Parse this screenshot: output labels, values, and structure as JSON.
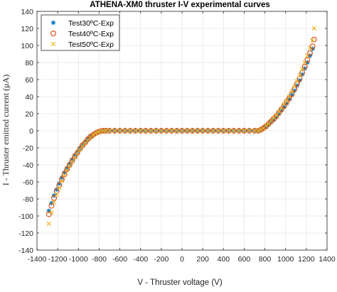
{
  "chart_data": {
    "type": "scatter",
    "title": "ATHENA-XM0 thruster I-V experimental curves",
    "xlabel": "V - Thruster voltage (V)",
    "ylabel": "I - Thruster emitted current (μA)",
    "xlim": [
      -1400,
      1400
    ],
    "ylim": [
      -140,
      140
    ],
    "xticks": [
      -1400,
      -1200,
      -1000,
      -800,
      -600,
      -400,
      -200,
      0,
      200,
      400,
      600,
      800,
      1000,
      1200,
      1400
    ],
    "yticks": [
      -140,
      -120,
      -100,
      -80,
      -60,
      -40,
      -20,
      0,
      20,
      40,
      60,
      80,
      100,
      120,
      140
    ],
    "grid": true,
    "legend_position": "top-left",
    "series": [
      {
        "name": "Test30ºC-Exp",
        "marker": "asterisk",
        "color": "#0072BD",
        "x": [
          -1285,
          -1260,
          -1235,
          -1210,
          -1185,
          -1160,
          -1135,
          -1110,
          -1085,
          -1060,
          -1035,
          -1010,
          -985,
          -960,
          -935,
          -910,
          -885,
          -860,
          -835,
          -810,
          -785,
          -760,
          -735,
          -700,
          -650,
          -600,
          -550,
          -500,
          -450,
          -400,
          -350,
          -300,
          -250,
          -200,
          -150,
          -100,
          -50,
          0,
          50,
          100,
          150,
          200,
          250,
          300,
          350,
          400,
          450,
          500,
          550,
          600,
          650,
          700,
          735,
          760,
          785,
          810,
          835,
          860,
          885,
          910,
          935,
          960,
          985,
          1010,
          1035,
          1060,
          1085,
          1110,
          1135,
          1160,
          1185,
          1210,
          1235,
          1260
        ],
        "y": [
          -94,
          -85,
          -76,
          -69,
          -62,
          -55,
          -49,
          -44,
          -39,
          -34,
          -29,
          -25,
          -21,
          -17,
          -13,
          -10,
          -7,
          -5,
          -3,
          -1.5,
          -0.5,
          0,
          0,
          0,
          0,
          0,
          0,
          0,
          0,
          0,
          0,
          0,
          0,
          0,
          0,
          0,
          0,
          0,
          0,
          0,
          0,
          0,
          0,
          0,
          0,
          0,
          0,
          0,
          0,
          0,
          0,
          0,
          0,
          1,
          3,
          5,
          7,
          10,
          13,
          16,
          20,
          24,
          28,
          32,
          37,
          42,
          47,
          53,
          59,
          66,
          73,
          80,
          88,
          96
        ]
      },
      {
        "name": "Test40ºC-Exp",
        "marker": "circle",
        "color": "#D95319",
        "x": [
          -1285,
          -1260,
          -1235,
          -1210,
          -1185,
          -1160,
          -1135,
          -1110,
          -1085,
          -1060,
          -1035,
          -1010,
          -985,
          -960,
          -935,
          -910,
          -885,
          -860,
          -835,
          -810,
          -785,
          -760,
          -735,
          -700,
          -650,
          -600,
          -550,
          -500,
          -450,
          -400,
          -350,
          -300,
          -250,
          -200,
          -150,
          -100,
          -50,
          0,
          50,
          100,
          150,
          200,
          250,
          300,
          350,
          400,
          450,
          500,
          550,
          600,
          650,
          700,
          735,
          760,
          785,
          810,
          835,
          860,
          885,
          910,
          935,
          960,
          985,
          1010,
          1035,
          1060,
          1085,
          1110,
          1135,
          1160,
          1185,
          1210,
          1235,
          1260,
          1275
        ],
        "y": [
          -98,
          -88,
          -79,
          -71,
          -64,
          -57,
          -51,
          -45,
          -40,
          -35,
          -30,
          -26,
          -21,
          -17,
          -14,
          -10,
          -7,
          -5,
          -3,
          -1.5,
          -0.5,
          0,
          0,
          0,
          0,
          0,
          0,
          0,
          0,
          0,
          0,
          0,
          0,
          0,
          0,
          0,
          0,
          0,
          0,
          0,
          0,
          0,
          0,
          0,
          0,
          0,
          0,
          0,
          0,
          0,
          0,
          0,
          0,
          1,
          3,
          5,
          8,
          11,
          14,
          17,
          21,
          25,
          29,
          34,
          38,
          43,
          49,
          55,
          61,
          68,
          75,
          83,
          91,
          99,
          107
        ]
      },
      {
        "name": "Test50ºC-Exp",
        "marker": "cross",
        "color": "#EDB120",
        "x": [
          -1285,
          -1260,
          -1235,
          -1210,
          -1185,
          -1160,
          -1135,
          -1110,
          -1085,
          -1060,
          -1035,
          -1010,
          -985,
          -960,
          -935,
          -910,
          -885,
          -860,
          -835,
          -810,
          -785,
          -760,
          -735,
          -700,
          -650,
          -600,
          -550,
          -500,
          -450,
          -400,
          -350,
          -300,
          -250,
          -200,
          -150,
          -100,
          -50,
          0,
          50,
          100,
          150,
          200,
          250,
          300,
          350,
          400,
          450,
          500,
          550,
          600,
          650,
          700,
          735,
          760,
          785,
          810,
          835,
          860,
          885,
          910,
          935,
          960,
          985,
          1010,
          1035,
          1060,
          1085,
          1110,
          1135,
          1160,
          1185,
          1210,
          1235,
          1260,
          1275
        ],
        "y": [
          -109,
          -96,
          -84,
          -75,
          -67,
          -59,
          -52,
          -46,
          -41,
          -36,
          -31,
          -26,
          -22,
          -18,
          -14,
          -11,
          -8,
          -5,
          -3,
          -1.5,
          -0.5,
          0,
          0,
          0,
          0,
          0,
          0,
          0,
          0,
          0,
          0,
          0,
          0,
          0,
          0,
          0,
          0,
          0,
          0,
          0,
          0,
          0,
          0,
          0,
          0,
          0,
          0,
          0,
          0,
          0,
          0,
          0,
          0,
          1,
          3,
          6,
          8,
          11,
          15,
          18,
          22,
          26,
          31,
          35,
          40,
          46,
          52,
          58,
          65,
          72,
          80,
          88,
          97,
          106,
          120
        ]
      }
    ]
  }
}
